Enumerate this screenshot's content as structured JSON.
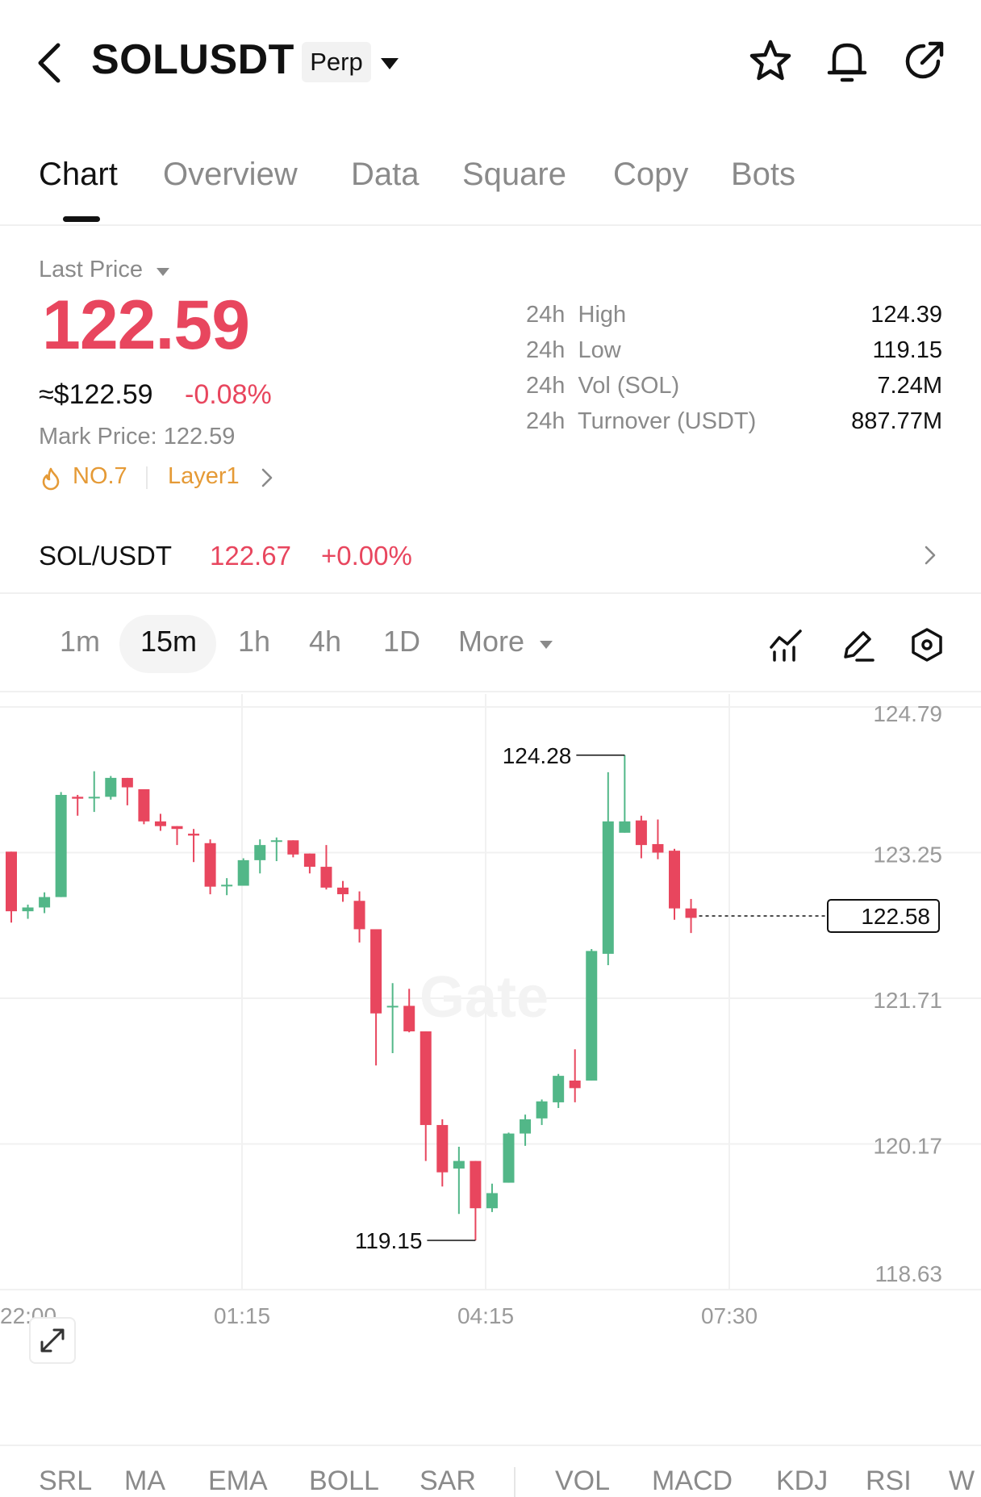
{
  "header": {
    "symbol": "SOLUSDT",
    "contract_type": "Perp",
    "icons": [
      "back-icon",
      "star-icon",
      "bell-icon",
      "share-icon"
    ]
  },
  "tabs": [
    {
      "label": "Chart",
      "active": true
    },
    {
      "label": "Overview",
      "active": false
    },
    {
      "label": "Data",
      "active": false
    },
    {
      "label": "Square",
      "active": false
    },
    {
      "label": "Copy",
      "active": false
    },
    {
      "label": "Bots",
      "active": false
    }
  ],
  "price": {
    "label": "Last Price",
    "last": "122.59",
    "usd": "≈$122.59",
    "change": "-0.08%",
    "mark_label": "Mark Price:",
    "mark_value": "122.59",
    "rank": "NO.7",
    "sector": "Layer1",
    "down_color": "#e8465e",
    "up_color": "#52b788",
    "tag_color": "#e59a36"
  },
  "stats": [
    {
      "label": "24h  High",
      "value": "124.39"
    },
    {
      "label": "24h  Low",
      "value": "119.15"
    },
    {
      "label": "24h  Vol (SOL)",
      "value": "7.24M"
    },
    {
      "label": "24h  Turnover (USDT)",
      "value": "887.77M"
    }
  ],
  "spot_pair": {
    "name": "SOL/USDT",
    "price": "122.67",
    "change": "+0.00%"
  },
  "toolbar": {
    "intervals": [
      "1m",
      "15m",
      "1h",
      "4h",
      "1D"
    ],
    "active_interval": "15m",
    "more_label": "More",
    "tool_icons": [
      "indicator-icon",
      "pencil-icon",
      "settings-hexagon-icon"
    ]
  },
  "chart_data": {
    "type": "candlestick",
    "title": "",
    "watermark": "Gate",
    "y_ticks": [
      "124.79",
      "123.25",
      "121.71",
      "120.17",
      "118.63"
    ],
    "ylim": [
      118.63,
      124.79
    ],
    "x_ticks": [
      "22:00",
      "01:15",
      "04:15",
      "07:30"
    ],
    "high_marker": "124.28",
    "low_marker": "119.15",
    "current_price_label": "122.58",
    "candles": [
      {
        "o": 123.26,
        "h": 123.26,
        "l": 122.51,
        "c": 122.63
      },
      {
        "o": 122.63,
        "h": 122.7,
        "l": 122.55,
        "c": 122.67
      },
      {
        "o": 122.67,
        "h": 122.83,
        "l": 122.61,
        "c": 122.78
      },
      {
        "o": 122.78,
        "h": 123.89,
        "l": 122.78,
        "c": 123.86
      },
      {
        "o": 123.84,
        "h": 123.86,
        "l": 123.64,
        "c": 123.82
      },
      {
        "o": 123.84,
        "h": 124.11,
        "l": 123.68,
        "c": 123.84
      },
      {
        "o": 123.84,
        "h": 124.06,
        "l": 123.81,
        "c": 124.04
      },
      {
        "o": 124.04,
        "h": 124.04,
        "l": 123.75,
        "c": 123.94
      },
      {
        "o": 123.92,
        "h": 123.92,
        "l": 123.55,
        "c": 123.58
      },
      {
        "o": 123.58,
        "h": 123.66,
        "l": 123.48,
        "c": 123.53
      },
      {
        "o": 123.53,
        "h": 123.53,
        "l": 123.33,
        "c": 123.5
      },
      {
        "o": 123.45,
        "h": 123.5,
        "l": 123.15,
        "c": 123.43
      },
      {
        "o": 123.35,
        "h": 123.39,
        "l": 122.81,
        "c": 122.89
      },
      {
        "o": 122.91,
        "h": 122.98,
        "l": 122.8,
        "c": 122.91
      },
      {
        "o": 122.9,
        "h": 123.19,
        "l": 122.9,
        "c": 123.17
      },
      {
        "o": 123.17,
        "h": 123.39,
        "l": 123.03,
        "c": 123.33
      },
      {
        "o": 123.37,
        "h": 123.41,
        "l": 123.16,
        "c": 123.38
      },
      {
        "o": 123.38,
        "h": 123.38,
        "l": 123.2,
        "c": 123.23
      },
      {
        "o": 123.24,
        "h": 123.24,
        "l": 123.03,
        "c": 123.1
      },
      {
        "o": 123.1,
        "h": 123.33,
        "l": 122.86,
        "c": 122.88
      },
      {
        "o": 122.88,
        "h": 122.95,
        "l": 122.73,
        "c": 122.81
      },
      {
        "o": 122.74,
        "h": 122.84,
        "l": 122.3,
        "c": 122.44
      },
      {
        "o": 122.44,
        "h": 122.44,
        "l": 121.0,
        "c": 121.55
      },
      {
        "o": 121.63,
        "h": 121.87,
        "l": 121.13,
        "c": 121.63
      },
      {
        "o": 121.63,
        "h": 121.81,
        "l": 121.35,
        "c": 121.36
      },
      {
        "o": 121.36,
        "h": 121.36,
        "l": 119.99,
        "c": 120.37
      },
      {
        "o": 120.37,
        "h": 120.43,
        "l": 119.72,
        "c": 119.87
      },
      {
        "o": 119.91,
        "h": 120.14,
        "l": 119.43,
        "c": 119.99
      },
      {
        "o": 119.99,
        "h": 119.99,
        "l": 119.15,
        "c": 119.49
      },
      {
        "o": 119.49,
        "h": 119.75,
        "l": 119.45,
        "c": 119.65
      },
      {
        "o": 119.76,
        "h": 120.29,
        "l": 119.76,
        "c": 120.28
      },
      {
        "o": 120.28,
        "h": 120.48,
        "l": 120.15,
        "c": 120.43
      },
      {
        "o": 120.44,
        "h": 120.64,
        "l": 120.37,
        "c": 120.62
      },
      {
        "o": 120.61,
        "h": 120.91,
        "l": 120.55,
        "c": 120.89
      },
      {
        "o": 120.84,
        "h": 121.17,
        "l": 120.61,
        "c": 120.76
      },
      {
        "o": 120.84,
        "h": 122.23,
        "l": 120.84,
        "c": 122.21
      },
      {
        "o": 122.18,
        "h": 124.1,
        "l": 122.06,
        "c": 123.58
      },
      {
        "o": 123.46,
        "h": 124.28,
        "l": 123.46,
        "c": 123.58
      },
      {
        "o": 123.59,
        "h": 123.64,
        "l": 123.19,
        "c": 123.33
      },
      {
        "o": 123.34,
        "h": 123.6,
        "l": 123.18,
        "c": 123.25
      },
      {
        "o": 123.27,
        "h": 123.29,
        "l": 122.54,
        "c": 122.66
      },
      {
        "o": 122.66,
        "h": 122.76,
        "l": 122.4,
        "c": 122.56
      }
    ]
  },
  "indicators": {
    "main": [
      "SRL",
      "MA",
      "EMA",
      "BOLL",
      "SAR"
    ],
    "sub": [
      "VOL",
      "MACD",
      "KDJ",
      "RSI",
      "W"
    ]
  }
}
